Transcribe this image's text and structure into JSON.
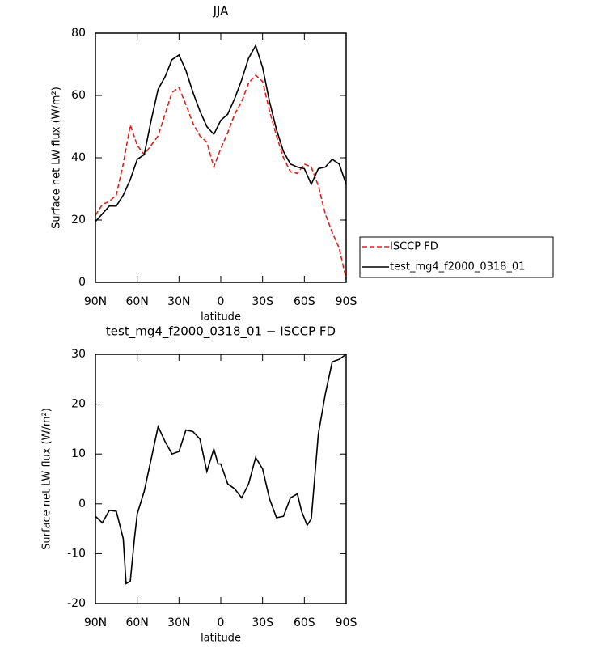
{
  "chart_data": [
    {
      "type": "line",
      "title": "JJA",
      "xlabel": "latitude",
      "ylabel": "Surface net LW flux (W/m²)",
      "x": [
        90,
        85,
        80,
        75,
        70,
        65,
        60,
        55,
        50,
        45,
        40,
        35,
        30,
        25,
        20,
        15,
        10,
        5,
        0,
        -5,
        -10,
        -15,
        -20,
        -25,
        -30,
        -35,
        -40,
        -45,
        -50,
        -55,
        -60,
        -65,
        -70,
        -75,
        -80,
        -85,
        -90
      ],
      "series": [
        {
          "name": "ISCCP FD",
          "color": "#e0201b",
          "dashed": true,
          "values": [
            21.5,
            25,
            26,
            28,
            38,
            50.5,
            44,
            41,
            44,
            47,
            54,
            61,
            62.5,
            57,
            51,
            47,
            45,
            37,
            43,
            48,
            54,
            58,
            64,
            66.5,
            64.5,
            55,
            47,
            40,
            35.5,
            35,
            38,
            37,
            31,
            22,
            16,
            11,
            1
          ]
        },
        {
          "name": "test_mg4_f2000_0318_01",
          "color": "#000000",
          "dashed": false,
          "values": [
            19.5,
            22,
            24.5,
            24.5,
            28,
            33,
            39.5,
            41,
            52,
            62,
            66,
            71.5,
            73,
            68,
            61,
            55,
            50,
            47.5,
            52,
            54,
            59,
            65,
            72,
            76,
            69,
            58,
            49,
            42,
            38,
            37,
            36.5,
            31.5,
            36.5,
            37,
            39.5,
            38,
            31.5
          ]
        }
      ],
      "xlim": [
        90,
        -90
      ],
      "xticks": [
        {
          "value": 90,
          "label": "90N"
        },
        {
          "value": 60,
          "label": "60N"
        },
        {
          "value": 30,
          "label": "30N"
        },
        0,
        {
          "value": -30,
          "label": "30S"
        },
        {
          "value": -60,
          "label": "60S"
        },
        {
          "value": -90,
          "label": "90S"
        }
      ],
      "ylim": [
        0,
        80
      ],
      "yticks": [
        0,
        20,
        40,
        60,
        80
      ],
      "legend": "right"
    },
    {
      "type": "line",
      "title": "test_mg4_f2000_0318_01 − ISCCP FD",
      "xlabel": "latitude",
      "ylabel": "Surface net LW flux (W/m²)",
      "x": [
        90,
        85,
        80,
        75,
        70,
        68,
        65,
        62,
        60,
        55,
        50,
        45,
        40,
        35,
        30,
        25,
        20,
        15,
        10,
        5,
        2,
        0,
        -5,
        -10,
        -15,
        -20,
        -25,
        -30,
        -35,
        -40,
        -45,
        -50,
        -55,
        -58,
        -62,
        -65,
        -70,
        -75,
        -80,
        -85,
        -90
      ],
      "series": [
        {
          "color": "#000000",
          "dashed": false,
          "values": [
            -2.5,
            -3.8,
            -1.3,
            -1.5,
            -7,
            -16,
            -15.5,
            -7,
            -2,
            2.5,
            9,
            15.5,
            12.5,
            10,
            10.5,
            14.8,
            14.5,
            13,
            6.5,
            11,
            8,
            8,
            4,
            3,
            1.2,
            4,
            9.3,
            7,
            1,
            -2.8,
            -2.5,
            1.2,
            2,
            -1.5,
            -4.3,
            -3,
            14,
            22,
            28.5,
            29,
            30
          ]
        }
      ],
      "xlim": [
        90,
        -90
      ],
      "xticks": [
        {
          "value": 90,
          "label": "90N"
        },
        {
          "value": 60,
          "label": "60N"
        },
        {
          "value": 30,
          "label": "30N"
        },
        0,
        {
          "value": -30,
          "label": "30S"
        },
        {
          "value": -60,
          "label": "60S"
        },
        {
          "value": -90,
          "label": "90S"
        }
      ],
      "ylim": [
        -20,
        30
      ],
      "yticks": [
        -20,
        -10,
        0,
        10,
        20,
        30
      ]
    }
  ]
}
